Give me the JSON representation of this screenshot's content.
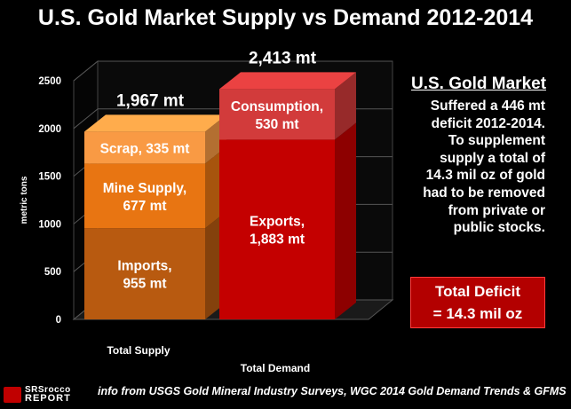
{
  "title": "U.S. Gold Market Supply vs Demand 2012-2014",
  "side_panel": {
    "heading": "U.S. Gold Market",
    "lines": [
      "Suffered a 446 mt",
      "deficit 2012-2014.",
      "To supplement",
      "supply a total of",
      "14.3 mil oz of gold",
      "had to be removed",
      "from private or",
      "public stocks."
    ]
  },
  "deficit_box": {
    "line1": "Total Deficit",
    "line2": "= 14.3 mil oz"
  },
  "footer": "info from USGS Gold Mineral Industry Surveys, WGC 2014 Gold Demand Trends & GFMS",
  "logo": {
    "line1": "SRSrocco",
    "line2": "REPORT"
  },
  "chart_data": {
    "type": "bar",
    "stacked": true,
    "ylabel": "metric tons",
    "ylim": [
      0,
      2500
    ],
    "yticks": [
      0,
      500,
      1000,
      1500,
      2000,
      2500
    ],
    "ytick_labels": [
      "0",
      "500",
      "1000",
      "1500",
      "2000",
      "2500"
    ],
    "grid": true,
    "categories": [
      "Total  Supply",
      "Total  Demand"
    ],
    "totals": [
      1967,
      2413
    ],
    "total_labels": [
      "1,967 mt",
      "2,413 mt"
    ],
    "stacks": [
      [
        {
          "name": "Imports",
          "value": 955,
          "label": [
            "Imports,",
            "955 mt"
          ],
          "color": "#b85a10"
        },
        {
          "name": "Mine Supply",
          "value": 677,
          "label": [
            "Mine Supply,",
            "677 mt"
          ],
          "color": "#e87512"
        },
        {
          "name": "Scrap",
          "value": 335,
          "label": [
            "Scrap, 335 mt"
          ],
          "color": "#f99a44"
        }
      ],
      [
        {
          "name": "Exports",
          "value": 1883,
          "label": [
            "Exports,",
            "1,883 mt"
          ],
          "color": "#c40000"
        },
        {
          "name": "Consumption",
          "value": 530,
          "label": [
            "Consumption,",
            "530 mt"
          ],
          "color": "#d23b3b"
        }
      ]
    ]
  }
}
